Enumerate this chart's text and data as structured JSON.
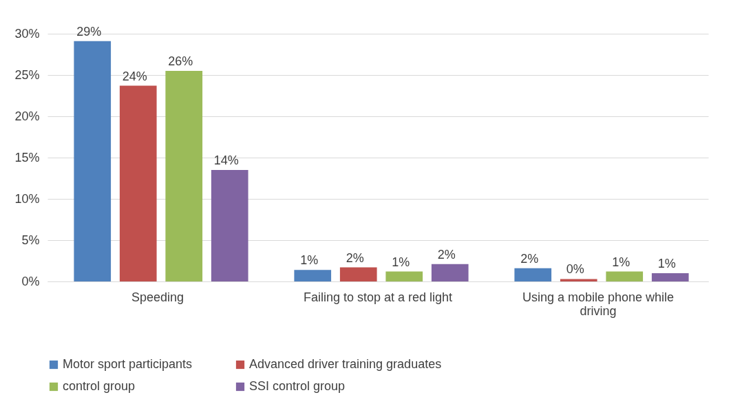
{
  "chart_data": {
    "type": "bar",
    "categories": [
      "Speeding",
      "Failing to stop at a red light",
      "Using a mobile phone while driving"
    ],
    "series": [
      {
        "name": "Motor sport participants",
        "color": "#4f81bd",
        "values": [
          29.1,
          1.4,
          1.6
        ],
        "value_labels": [
          "29%",
          "1%",
          "2%"
        ]
      },
      {
        "name": "Advanced driver training graduates",
        "color": "#c0504d",
        "values": [
          23.7,
          1.7,
          0.3
        ],
        "value_labels": [
          "24%",
          "2%",
          "0%"
        ]
      },
      {
        "name": "control group",
        "color": "#9bbb59",
        "values": [
          25.5,
          1.2,
          1.2
        ],
        "value_labels": [
          "26%",
          "1%",
          "1%"
        ]
      },
      {
        "name": "SSI control group",
        "color": "#8064a2",
        "values": [
          13.5,
          2.1,
          1.0
        ],
        "value_labels": [
          "14%",
          "2%",
          "1%"
        ]
      }
    ],
    "ylim": [
      0,
      30
    ],
    "yticks": [
      {
        "value": 0,
        "label": "0%"
      },
      {
        "value": 5,
        "label": "5%"
      },
      {
        "value": 10,
        "label": "10%"
      },
      {
        "value": 15,
        "label": "15%"
      },
      {
        "value": 20,
        "label": "20%"
      },
      {
        "value": 25,
        "label": "25%"
      },
      {
        "value": 30,
        "label": "30%"
      }
    ],
    "grid": "y",
    "legend": "bottom"
  }
}
